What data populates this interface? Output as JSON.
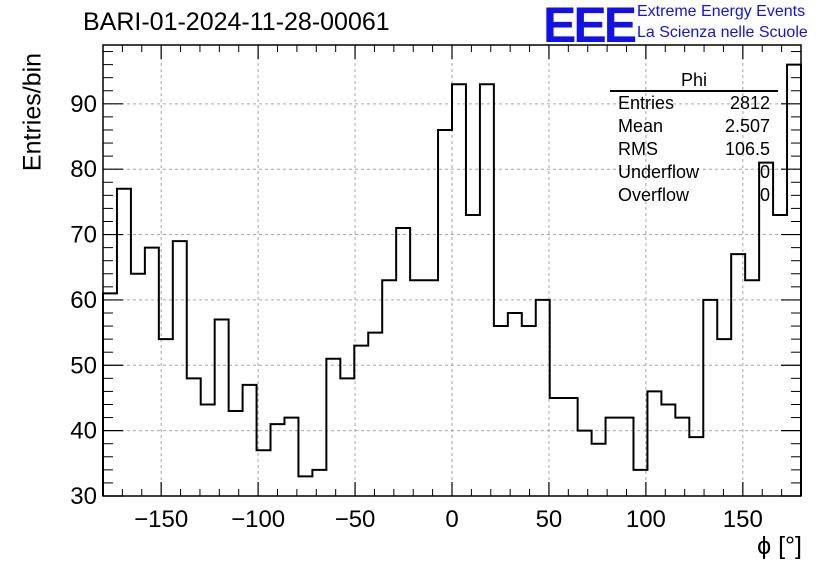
{
  "header": {
    "title": "BARI-01-2024-11-28-00061",
    "logo_text": "EEE",
    "logo_line1": "Extreme Energy Events",
    "logo_line2": "La Scienza nelle Scuole"
  },
  "stats_box": {
    "title": "Phi",
    "rows": [
      {
        "label": "Entries",
        "value": "2812"
      },
      {
        "label": "Mean",
        "value": "2.507"
      },
      {
        "label": "RMS",
        "value": "106.5"
      },
      {
        "label": "Underflow",
        "value": "0"
      },
      {
        "label": "Overflow",
        "value": "0"
      }
    ]
  },
  "chart_data": {
    "type": "histogram",
    "title": "BARI-01-2024-11-28-00061",
    "xlabel": "ϕ [°]",
    "ylabel": "Entries/bin",
    "xlim": [
      -180,
      180
    ],
    "ylim": [
      30,
      99
    ],
    "bin_width": 7.2,
    "x_ticks": [
      -150,
      -100,
      -50,
      0,
      50,
      100,
      150
    ],
    "x_tick_labels": [
      "−150",
      "−100",
      "−50",
      "0",
      "50",
      "100",
      "150"
    ],
    "y_ticks": [
      30,
      40,
      50,
      60,
      70,
      80,
      90
    ],
    "y_tick_labels": [
      "30",
      "40",
      "50",
      "60",
      "70",
      "80",
      "90"
    ],
    "grid": true,
    "values": [
      61,
      77,
      64,
      68,
      54,
      69,
      48,
      44,
      57,
      43,
      47,
      37,
      41,
      42,
      33,
      34,
      51,
      48,
      53,
      55,
      63,
      71,
      63,
      63,
      86,
      93,
      73,
      93,
      56,
      58,
      56,
      60,
      45,
      45,
      40,
      38,
      42,
      42,
      34,
      46,
      44,
      42,
      39,
      60,
      54,
      67,
      63,
      81,
      73,
      96
    ]
  },
  "style": {
    "line_color": "#000000",
    "grid_color": "#a6a6a6",
    "logo_color": "#1212e6"
  }
}
